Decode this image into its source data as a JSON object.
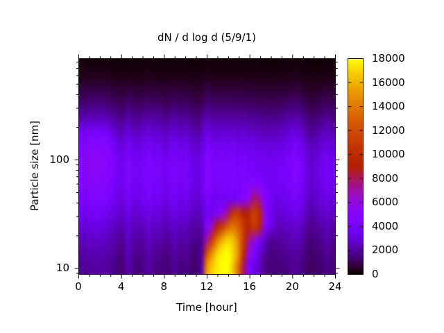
{
  "title": "dN / d log d (5/9/1)",
  "x_axis": {
    "label": "Time [hour]",
    "min": 0,
    "max": 24,
    "major_ticks": [
      0,
      4,
      8,
      12,
      16,
      20,
      24
    ],
    "minor_step_hours": 1
  },
  "y_axis": {
    "label": "Particle size [nm]",
    "scale": "log",
    "min_nm": 8.8,
    "max_nm": 860,
    "major_ticks": [
      10,
      100
    ],
    "minor_ticks": [
      9,
      20,
      30,
      40,
      50,
      60,
      70,
      80,
      90,
      200,
      300,
      400,
      500,
      600,
      700,
      800
    ]
  },
  "colorbar": {
    "min": 0,
    "max": 18000,
    "tick_step": 2000,
    "tick_labels": [
      "0",
      "2000",
      "4000",
      "6000",
      "8000",
      "10000",
      "12000",
      "14000",
      "16000",
      "18000"
    ],
    "palette": "gnuplot pm3d default (rgbformulae 7,5,15): black-violet-magenta-red-orange-yellow",
    "palette_hex_stops": [
      "#000000",
      "#5501A4",
      "#7803FB",
      "#A110C9",
      "#B42000",
      "#D55700",
      "#F2BA00",
      "#FFFF00"
    ]
  },
  "chart_data": {
    "type": "heatmap",
    "title": "dN / d log d (5/9/1)",
    "xlabel": "Time [hour]",
    "ylabel": "Particle size [nm]",
    "value_range": [
      0,
      18000
    ],
    "x_hours": [
      0,
      0.5,
      1,
      1.5,
      2,
      2.5,
      3,
      3.5,
      4,
      4.5,
      5,
      5.5,
      6,
      6.5,
      7,
      7.5,
      8,
      8.5,
      9,
      9.5,
      10,
      10.5,
      11,
      11.5,
      12,
      12.5,
      13,
      13.5,
      14,
      14.5,
      15,
      15.5,
      16,
      16.5,
      17,
      17.5,
      18,
      18.5,
      19,
      19.5,
      20,
      20.5,
      21,
      21.5,
      22,
      22.5,
      23,
      23.5,
      24
    ],
    "sizes_nm": [
      850,
      627,
      462,
      341,
      251,
      185,
      137,
      101,
      74,
      55,
      40,
      30,
      22,
      16,
      12,
      8.8
    ],
    "values": [
      [
        120,
        120,
        130,
        130,
        130,
        120,
        110,
        100,
        90,
        110,
        100,
        100,
        110,
        120,
        100,
        110,
        90,
        100,
        110,
        100,
        110,
        90,
        80,
        90,
        130,
        110,
        110,
        110,
        110,
        110,
        100,
        110,
        100,
        100,
        100,
        90,
        90,
        90,
        100,
        100,
        110,
        120,
        110,
        80,
        70,
        80,
        90,
        100,
        90
      ],
      [
        350,
        370,
        380,
        400,
        390,
        370,
        330,
        290,
        280,
        350,
        290,
        290,
        320,
        350,
        310,
        320,
        270,
        310,
        330,
        290,
        320,
        260,
        240,
        270,
        380,
        330,
        320,
        340,
        320,
        340,
        310,
        320,
        300,
        300,
        290,
        280,
        270,
        280,
        290,
        310,
        330,
        350,
        320,
        250,
        210,
        230,
        260,
        290,
        260
      ],
      [
        810,
        850,
        900,
        920,
        910,
        850,
        770,
        670,
        640,
        810,
        690,
        670,
        740,
        810,
        710,
        760,
        630,
        710,
        770,
        670,
        740,
        620,
        560,
        630,
        880,
        770,
        740,
        780,
        740,
        780,
        710,
        760,
        700,
        700,
        670,
        640,
        630,
        640,
        670,
        710,
        770,
        830,
        740,
        570,
        490,
        550,
        620,
        690,
        600
      ],
      [
        1380,
        1460,
        1540,
        1580,
        1560,
        1460,
        1320,
        1140,
        1100,
        1380,
        1180,
        1140,
        1260,
        1380,
        1220,
        1300,
        1080,
        1220,
        1320,
        1140,
        1260,
        1060,
        960,
        1080,
        1500,
        1320,
        1260,
        1340,
        1270,
        1340,
        1220,
        1300,
        1200,
        1200,
        1150,
        1100,
        1080,
        1100,
        1150,
        1220,
        1320,
        1420,
        1260,
        980,
        840,
        940,
        1060,
        1180,
        1020
      ],
      [
        2190,
        2320,
        2430,
        2510,
        2470,
        2320,
        2090,
        1810,
        1750,
        2190,
        1860,
        1810,
        2000,
        2190,
        1940,
        2050,
        1710,
        1940,
        2090,
        1810,
        2000,
        1670,
        1520,
        1710,
        2380,
        2090,
        2000,
        2130,
        2010,
        2130,
        1940,
        2050,
        1900,
        1900,
        1820,
        1750,
        1710,
        1750,
        1820,
        1940,
        2090,
        2240,
        2000,
        1560,
        1330,
        1480,
        1670,
        1860,
        1620
      ],
      [
        3600,
        3900,
        4100,
        4100,
        4000,
        3800,
        3150,
        2470,
        2390,
        2990,
        2550,
        2470,
        2730,
        2990,
        2650,
        2810,
        2340,
        2650,
        2860,
        2470,
        2730,
        2290,
        2080,
        2340,
        3250,
        2860,
        2730,
        2910,
        2760,
        2910,
        2650,
        2810,
        2600,
        2600,
        2500,
        2390,
        2340,
        2390,
        2500,
        2650,
        2860,
        3070,
        2730,
        2130,
        1820,
        2030,
        2290,
        2550,
        2210
      ],
      [
        4400,
        4700,
        4900,
        4900,
        4800,
        4500,
        3990,
        3140,
        3040,
        3800,
        3230,
        3140,
        3470,
        3800,
        3370,
        3560,
        2970,
        3370,
        3630,
        3140,
        3470,
        2900,
        2640,
        2970,
        4130,
        3630,
        3470,
        3700,
        3500,
        3700,
        3370,
        3560,
        3300,
        3300,
        3170,
        3040,
        2970,
        3040,
        3170,
        3370,
        3630,
        3890,
        3470,
        2710,
        2310,
        2570,
        2900,
        3230,
        2810
      ],
      [
        4800,
        5100,
        5300,
        5300,
        5200,
        4900,
        4600,
        3610,
        3500,
        4370,
        3720,
        3610,
        3990,
        4370,
        3880,
        4100,
        3420,
        3880,
        4180,
        3610,
        3990,
        3340,
        3040,
        3420,
        4750,
        4180,
        3990,
        4260,
        4030,
        4260,
        3880,
        4100,
        3800,
        3800,
        3650,
        3500,
        3420,
        3500,
        3650,
        3880,
        4180,
        4480,
        3990,
        3120,
        2660,
        2960,
        3340,
        3720,
        3230
      ],
      [
        4800,
        5000,
        5200,
        5200,
        5100,
        4800,
        4400,
        3800,
        3680,
        4600,
        3920,
        3800,
        4200,
        4600,
        4080,
        4320,
        3600,
        4080,
        4400,
        3800,
        4200,
        3520,
        3200,
        3600,
        5000,
        4400,
        4200,
        4480,
        4240,
        4480,
        4080,
        4320,
        4000,
        4000,
        3840,
        3680,
        3600,
        3680,
        3840,
        4080,
        4400,
        4720,
        4200,
        3280,
        2800,
        3120,
        3520,
        3920,
        3400
      ],
      [
        4500,
        4700,
        4900,
        4900,
        4800,
        4500,
        4200,
        3610,
        3500,
        4370,
        3720,
        3610,
        3990,
        4370,
        3880,
        4100,
        3420,
        3880,
        4180,
        3610,
        3990,
        3340,
        3040,
        3420,
        4750,
        4180,
        4000,
        4300,
        4100,
        4400,
        4200,
        4600,
        4700,
        5200,
        5000,
        4300,
        3800,
        3600,
        3700,
        3900,
        4200,
        4500,
        4000,
        3120,
        2660,
        2960,
        3340,
        3720,
        3230
      ],
      [
        3900,
        4200,
        4400,
        4500,
        4400,
        4200,
        3700,
        3200,
        3100,
        3900,
        3300,
        3200,
        3600,
        3900,
        3500,
        3700,
        3100,
        3500,
        3700,
        3200,
        3600,
        3000,
        2700,
        3100,
        4300,
        3700,
        3600,
        3800,
        3600,
        3800,
        4300,
        5000,
        5800,
        8000,
        7200,
        5000,
        4000,
        3300,
        3300,
        3500,
        3700,
        4000,
        3600,
        2800,
        2400,
        2700,
        3000,
        3300,
        2900
      ],
      [
        3300,
        3500,
        3700,
        3800,
        3800,
        3500,
        3200,
        2800,
        2700,
        3300,
        2800,
        2800,
        3100,
        3300,
        3000,
        3100,
        2600,
        3000,
        3200,
        2800,
        3100,
        2600,
        2300,
        2600,
        3700,
        3400,
        4600,
        5600,
        7500,
        10500,
        11000,
        9000,
        9500,
        11500,
        10000,
        6000,
        4000,
        3000,
        2800,
        3000,
        3200,
        3400,
        3100,
        2400,
        2000,
        2300,
        2600,
        2800,
        2500
      ],
      [
        2800,
        2900,
        3100,
        3200,
        3100,
        2900,
        2600,
        2300,
        2200,
        2900,
        2400,
        2300,
        2500,
        2800,
        2500,
        2600,
        2200,
        2500,
        2600,
        2300,
        2500,
        2100,
        1900,
        2200,
        4600,
        6700,
        9000,
        11000,
        13000,
        14000,
        13000,
        11000,
        9500,
        11000,
        9500,
        5600,
        3500,
        2800,
        2300,
        2500,
        2600,
        2800,
        2500,
        2000,
        1700,
        1900,
        2100,
        2400,
        2000
      ],
      [
        2300,
        2400,
        2600,
        2600,
        2600,
        2400,
        2200,
        1900,
        1800,
        2600,
        2000,
        1900,
        2100,
        2500,
        2000,
        2200,
        1800,
        2000,
        2400,
        1900,
        2100,
        1800,
        1600,
        1700,
        7000,
        11000,
        14000,
        16000,
        17000,
        16500,
        14500,
        11000,
        7500,
        6000,
        4000,
        2800,
        1800,
        1800,
        1900,
        2000,
        2200,
        2400,
        2100,
        1600,
        1400,
        1600,
        1800,
        2100,
        1700
      ],
      [
        2000,
        2100,
        2200,
        2200,
        2200,
        2100,
        1900,
        1600,
        1600,
        2400,
        1700,
        1600,
        1800,
        2300,
        1700,
        1800,
        1500,
        1700,
        2100,
        1600,
        1800,
        1500,
        1400,
        1800,
        12000,
        15000,
        17000,
        17800,
        18000,
        17000,
        15000,
        10000,
        6000,
        4400,
        3000,
        2000,
        1500,
        1600,
        1600,
        1700,
        1900,
        2000,
        1800,
        1400,
        1200,
        1300,
        1500,
        1800,
        1500
      ],
      [
        1700,
        1800,
        1900,
        2000,
        2000,
        1800,
        1700,
        1400,
        1400,
        2200,
        1500,
        1400,
        1600,
        2100,
        1500,
        1600,
        1400,
        1500,
        1800,
        1400,
        1600,
        1300,
        1200,
        2000,
        15000,
        16700,
        17600,
        18000,
        18000,
        16500,
        13500,
        8000,
        4500,
        3200,
        2600,
        1700,
        1400,
        1400,
        1400,
        1500,
        1700,
        1800,
        1600,
        1200,
        1100,
        1200,
        1300,
        1600,
        1400
      ]
    ]
  }
}
